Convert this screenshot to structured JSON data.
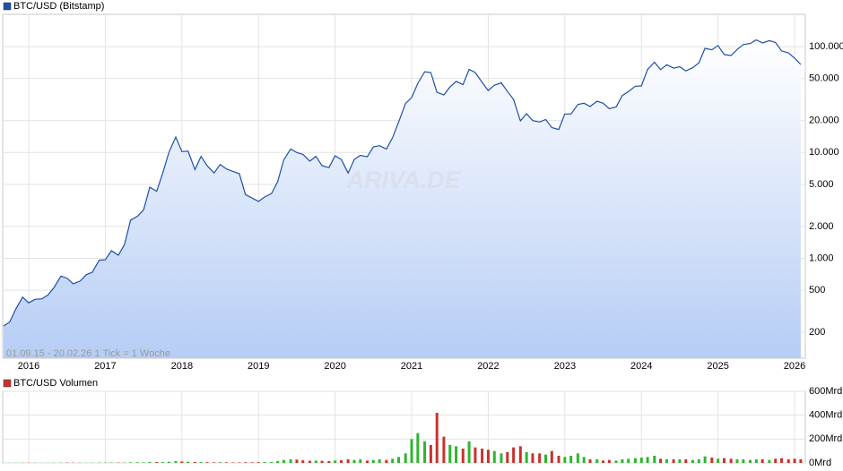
{
  "chart_data": [
    {
      "type": "line",
      "log_scale": true,
      "grid": true,
      "note": "01.09.15 - 20.02.26   1 Tick = 1 Woche",
      "watermark": "ARIVA.DE",
      "xlim": [
        2015.66,
        2026.14
      ],
      "xticks": [
        2016,
        2017,
        2018,
        2019,
        2020,
        2021,
        2022,
        2023,
        2024,
        2025,
        2026
      ],
      "ylim": [
        114,
        202000
      ],
      "yticks": [
        {
          "value": 100000,
          "label": "100.000"
        },
        {
          "value": 50000,
          "label": "50.000"
        },
        {
          "value": 20000,
          "label": "20.000"
        },
        {
          "value": 10000,
          "label": "10.000"
        },
        {
          "value": 5000,
          "label": "5.000"
        },
        {
          "value": 2000,
          "label": "2.000"
        },
        {
          "value": 1000,
          "label": "1.000"
        },
        500,
        200
      ],
      "x": [
        2015.67,
        2015.75,
        2015.83,
        2015.92,
        2016.0,
        2016.08,
        2016.17,
        2016.25,
        2016.33,
        2016.42,
        2016.5,
        2016.58,
        2016.67,
        2016.75,
        2016.83,
        2016.92,
        2017.0,
        2017.08,
        2017.17,
        2017.25,
        2017.33,
        2017.42,
        2017.5,
        2017.58,
        2017.67,
        2017.75,
        2017.83,
        2017.92,
        2018.0,
        2018.08,
        2018.17,
        2018.25,
        2018.33,
        2018.42,
        2018.5,
        2018.58,
        2018.67,
        2018.75,
        2018.83,
        2018.92,
        2019.0,
        2019.08,
        2019.17,
        2019.25,
        2019.33,
        2019.42,
        2019.5,
        2019.58,
        2019.67,
        2019.75,
        2019.83,
        2019.92,
        2020.0,
        2020.08,
        2020.17,
        2020.25,
        2020.33,
        2020.42,
        2020.5,
        2020.58,
        2020.67,
        2020.75,
        2020.83,
        2020.92,
        2021.0,
        2021.08,
        2021.17,
        2021.25,
        2021.33,
        2021.42,
        2021.5,
        2021.58,
        2021.67,
        2021.75,
        2021.83,
        2021.92,
        2022.0,
        2022.08,
        2022.17,
        2022.25,
        2022.33,
        2022.42,
        2022.5,
        2022.58,
        2022.67,
        2022.75,
        2022.83,
        2022.92,
        2023.0,
        2023.08,
        2023.17,
        2023.25,
        2023.33,
        2023.42,
        2023.5,
        2023.58,
        2023.67,
        2023.75,
        2023.83,
        2023.92,
        2024.0,
        2024.08,
        2024.17,
        2024.25,
        2024.33,
        2024.42,
        2024.5,
        2024.58,
        2024.67,
        2024.75,
        2024.83,
        2024.92,
        2025.0,
        2025.08,
        2025.17,
        2025.25,
        2025.33,
        2025.42,
        2025.5,
        2025.58,
        2025.67,
        2025.75,
        2025.83,
        2025.92,
        2026.0,
        2026.08
      ],
      "series": [
        {
          "name": "BTC/USD (Bitstamp)",
          "color": "#1f4fa8",
          "values": [
            230,
            250,
            330,
            430,
            380,
            410,
            415,
            450,
            530,
            680,
            650,
            575,
            610,
            700,
            740,
            960,
            970,
            1180,
            1070,
            1350,
            2300,
            2500,
            2870,
            4700,
            4300,
            6400,
            10000,
            14000,
            10200,
            10300,
            6900,
            9200,
            7500,
            6400,
            7700,
            7000,
            6600,
            6300,
            4000,
            3700,
            3450,
            3800,
            4100,
            5300,
            8500,
            10800,
            10000,
            9600,
            8300,
            9200,
            7500,
            7200,
            9300,
            8600,
            6400,
            8600,
            9400,
            9100,
            11300,
            11600,
            10800,
            13800,
            19400,
            29000,
            33000,
            45000,
            58000,
            57000,
            37000,
            35000,
            41500,
            47000,
            43800,
            61000,
            57000,
            46000,
            38500,
            43200,
            45500,
            37700,
            31800,
            19900,
            23300,
            20000,
            19400,
            20500,
            17200,
            16500,
            23100,
            23100,
            28400,
            29200,
            27200,
            30500,
            29200,
            26000,
            27000,
            34500,
            37700,
            42300,
            42500,
            61100,
            71300,
            60600,
            67500,
            62700,
            64600,
            59000,
            63300,
            70300,
            96400,
            93400,
            102400,
            84300,
            82500,
            94200,
            104600,
            107100,
            115700,
            108200,
            114000,
            109500,
            91000,
            87500,
            78000,
            68000
          ]
        }
      ]
    },
    {
      "type": "bar",
      "up_color": "#2fb52f",
      "down_color": "#c8322d",
      "xlim": [
        2015.66,
        2026.14
      ],
      "ylim": [
        0,
        600
      ],
      "yticks": [
        {
          "value": 600,
          "label": "600Mrd"
        },
        {
          "value": 400,
          "label": "400Mrd"
        },
        {
          "value": 200,
          "label": "200Mrd"
        },
        {
          "value": 0,
          "label": "0Mrd"
        }
      ],
      "x": [
        2015.67,
        2015.75,
        2015.83,
        2015.92,
        2016.0,
        2016.08,
        2016.17,
        2016.25,
        2016.33,
        2016.42,
        2016.5,
        2016.58,
        2016.67,
        2016.75,
        2016.83,
        2016.92,
        2017.0,
        2017.08,
        2017.17,
        2017.25,
        2017.33,
        2017.42,
        2017.5,
        2017.58,
        2017.67,
        2017.75,
        2017.83,
        2017.92,
        2018.0,
        2018.08,
        2018.17,
        2018.25,
        2018.33,
        2018.42,
        2018.5,
        2018.58,
        2018.67,
        2018.75,
        2018.83,
        2018.92,
        2019.0,
        2019.08,
        2019.17,
        2019.25,
        2019.33,
        2019.42,
        2019.5,
        2019.58,
        2019.67,
        2019.75,
        2019.83,
        2019.92,
        2020.0,
        2020.08,
        2020.17,
        2020.25,
        2020.33,
        2020.42,
        2020.5,
        2020.58,
        2020.67,
        2020.75,
        2020.83,
        2020.92,
        2021.0,
        2021.08,
        2021.17,
        2021.25,
        2021.33,
        2021.42,
        2021.5,
        2021.58,
        2021.67,
        2021.75,
        2021.83,
        2021.92,
        2022.0,
        2022.08,
        2022.17,
        2022.25,
        2022.33,
        2022.42,
        2022.5,
        2022.58,
        2022.67,
        2022.75,
        2022.83,
        2022.92,
        2023.0,
        2023.08,
        2023.17,
        2023.25,
        2023.33,
        2023.42,
        2023.5,
        2023.58,
        2023.67,
        2023.75,
        2023.83,
        2023.92,
        2024.0,
        2024.08,
        2024.17,
        2024.25,
        2024.33,
        2024.42,
        2024.5,
        2024.58,
        2024.67,
        2024.75,
        2024.83,
        2024.92,
        2025.0,
        2025.08,
        2025.17,
        2025.25,
        2025.33,
        2025.42,
        2025.5,
        2025.58,
        2025.67,
        2025.75,
        2025.83,
        2025.92,
        2026.0,
        2026.08
      ],
      "series": [
        {
          "name": "BTC/USD Volumen",
          "color": "#c8322d",
          "values": [
            1,
            1,
            2,
            2,
            2,
            2,
            1,
            1,
            2,
            3,
            3,
            2,
            2,
            2,
            2,
            3,
            3,
            3,
            3,
            3,
            5,
            6,
            5,
            8,
            8,
            7,
            10,
            15,
            12,
            10,
            8,
            7,
            6,
            5,
            6,
            5,
            4,
            4,
            6,
            5,
            6,
            7,
            8,
            15,
            25,
            30,
            28,
            22,
            18,
            20,
            18,
            15,
            20,
            22,
            30,
            25,
            30,
            20,
            25,
            30,
            25,
            35,
            50,
            80,
            200,
            250,
            180,
            150,
            420,
            220,
            150,
            140,
            120,
            180,
            130,
            120,
            110,
            100,
            80,
            90,
            130,
            140,
            90,
            80,
            80,
            70,
            100,
            60,
            50,
            60,
            80,
            50,
            30,
            30,
            20,
            25,
            20,
            30,
            35,
            40,
            45,
            50,
            60,
            35,
            30,
            30,
            30,
            30,
            25,
            30,
            55,
            45,
            35,
            40,
            35,
            30,
            30,
            25,
            30,
            30,
            25,
            35,
            40,
            30,
            35,
            30
          ]
        }
      ]
    }
  ]
}
